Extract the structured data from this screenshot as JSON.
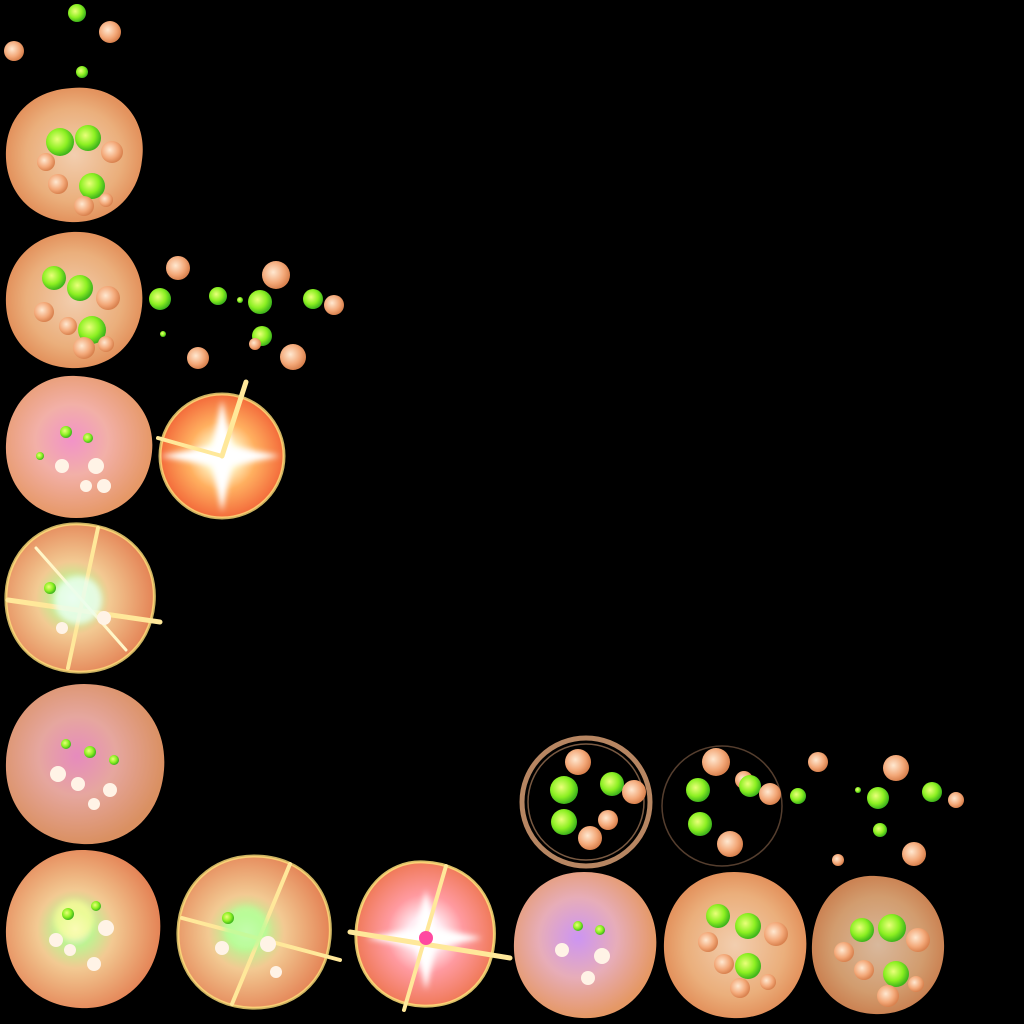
{
  "sprite_sheet": {
    "background": "#000000",
    "palette": {
      "orange": "#f6b27a",
      "orange_edge": "#f08f55",
      "peach": "#ffd0a8",
      "lime": "#a8ff2a",
      "green": "#3fd02a",
      "pink": "#ff9ad2",
      "violet": "#d79cff",
      "flash_core": "#ffffff",
      "flash_glow": "#ffe07a"
    },
    "frames": [
      {
        "name": "frame-bubbles-scatter-top",
        "kind": "scatter"
      },
      {
        "name": "frame-blob-cluster-1",
        "kind": "blob-cluster"
      },
      {
        "name": "frame-blob-cluster-2",
        "kind": "blob-cluster"
      },
      {
        "name": "frame-bubbles-scatter-mid",
        "kind": "scatter"
      },
      {
        "name": "frame-blob-pink",
        "kind": "blob-pink"
      },
      {
        "name": "frame-flash-small",
        "kind": "flash"
      },
      {
        "name": "frame-blob-burst",
        "kind": "blob-burst"
      },
      {
        "name": "frame-blob-plain",
        "kind": "blob-plain"
      },
      {
        "name": "frame-blob-burst-bottom-1",
        "kind": "blob-burst"
      },
      {
        "name": "frame-blob-burst-bottom-2",
        "kind": "blob-burst"
      },
      {
        "name": "frame-flash-bottom",
        "kind": "flash"
      },
      {
        "name": "frame-blob-violet",
        "kind": "blob-pink"
      },
      {
        "name": "frame-blob-cluster-bottom-1",
        "kind": "blob-cluster"
      },
      {
        "name": "frame-blob-cluster-bottom-2",
        "kind": "blob-cluster"
      },
      {
        "name": "frame-ring-bubbles",
        "kind": "ring"
      },
      {
        "name": "frame-ring-bubbles-faint",
        "kind": "ring"
      },
      {
        "name": "frame-bubbles-scatter-right",
        "kind": "scatter"
      }
    ]
  }
}
